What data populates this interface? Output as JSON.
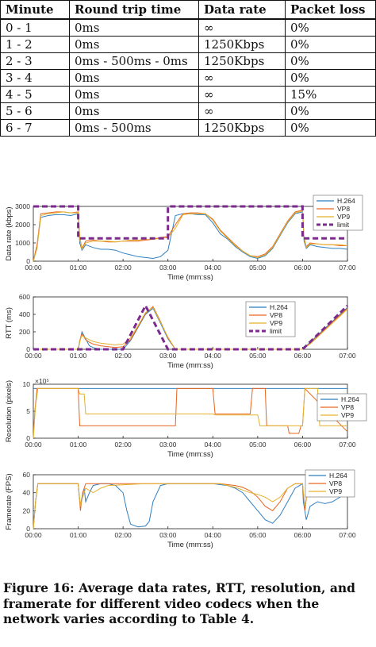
{
  "table": {
    "headers": [
      "Minute",
      "Round trip time",
      "Data rate",
      "Packet loss"
    ],
    "rows": [
      [
        "0 - 1",
        "0ms",
        "∞",
        "0%"
      ],
      [
        "1 - 2",
        "0ms",
        "1250Kbps",
        "0%"
      ],
      [
        "2 - 3",
        "0ms - 500ms - 0ms",
        "1250Kbps",
        "0%"
      ],
      [
        "3 - 4",
        "0ms",
        "∞",
        "0%"
      ],
      [
        "4 - 5",
        "0ms",
        "∞",
        "15%"
      ],
      [
        "5 - 6",
        "0ms",
        "∞",
        "0%"
      ],
      [
        "6 - 7",
        "0ms - 500ms",
        "1250Kbps",
        "0%"
      ]
    ]
  },
  "colors": {
    "h264": "#2f7fc1",
    "vp8": "#e8641f",
    "vp9": "#e3b12b",
    "limit": "#7a2b8c"
  },
  "chart_data": [
    {
      "type": "line",
      "xlabel": "Time (mm:ss)",
      "ylabel": "Data rate (kbps)",
      "xticks": [
        "00:00",
        "01:00",
        "02:00",
        "03:00",
        "04:00",
        "05:00",
        "06:00",
        "07:00"
      ],
      "yticks": [
        "0",
        "1000",
        "2000",
        "3000"
      ],
      "xlim": [
        0,
        420
      ],
      "ylim": [
        0,
        3000
      ],
      "legend": "top-right",
      "series": [
        {
          "name": "H.264",
          "x": [
            0,
            5,
            10,
            20,
            30,
            40,
            50,
            60,
            62,
            65,
            70,
            80,
            90,
            100,
            110,
            120,
            130,
            140,
            150,
            160,
            170,
            180,
            190,
            200,
            210,
            220,
            230,
            240,
            250,
            260,
            270,
            280,
            290,
            300,
            310,
            320,
            330,
            340,
            350,
            360,
            362,
            365,
            370,
            380,
            390,
            400,
            410,
            420
          ],
          "y": [
            0,
            800,
            2400,
            2500,
            2550,
            2550,
            2500,
            2600,
            1000,
            600,
            900,
            750,
            650,
            650,
            600,
            450,
            350,
            250,
            200,
            150,
            250,
            600,
            2500,
            2600,
            2600,
            2550,
            2550,
            2100,
            1500,
            1200,
            800,
            500,
            250,
            150,
            300,
            700,
            1400,
            2100,
            2600,
            2700,
            1100,
            700,
            900,
            800,
            750,
            700,
            700,
            650
          ]
        },
        {
          "name": "VP8",
          "x": [
            0,
            5,
            10,
            20,
            30,
            40,
            50,
            60,
            62,
            65,
            70,
            80,
            90,
            100,
            110,
            120,
            130,
            140,
            150,
            160,
            170,
            180,
            190,
            200,
            210,
            220,
            230,
            240,
            250,
            260,
            270,
            280,
            290,
            300,
            310,
            320,
            330,
            340,
            350,
            360,
            362,
            365,
            370,
            380,
            390,
            400,
            410,
            420
          ],
          "y": [
            0,
            900,
            2600,
            2650,
            2700,
            2700,
            2650,
            2700,
            1300,
            700,
            1100,
            1150,
            1100,
            1050,
            1050,
            1100,
            1100,
            1100,
            1150,
            1200,
            1300,
            1350,
            2000,
            2600,
            2650,
            2650,
            2600,
            2300,
            1700,
            1300,
            900,
            550,
            300,
            250,
            400,
            800,
            1500,
            2200,
            2700,
            2800,
            1300,
            800,
            1000,
            950,
            900,
            900,
            850,
            850
          ]
        },
        {
          "name": "VP9",
          "x": [
            0,
            5,
            10,
            20,
            30,
            40,
            50,
            60,
            62,
            65,
            70,
            80,
            90,
            100,
            110,
            120,
            130,
            140,
            150,
            160,
            170,
            180,
            190,
            200,
            210,
            220,
            230,
            240,
            250,
            260,
            270,
            280,
            290,
            300,
            310,
            320,
            330,
            340,
            350,
            360,
            362,
            365,
            370,
            380,
            390,
            400,
            410,
            420
          ],
          "y": [
            0,
            700,
            2500,
            2600,
            2650,
            2700,
            2650,
            2650,
            1200,
            650,
            1000,
            1100,
            1100,
            1100,
            1050,
            1100,
            1150,
            1150,
            1200,
            1200,
            1250,
            1300,
            1800,
            2550,
            2600,
            2600,
            2600,
            2250,
            1650,
            1250,
            850,
            550,
            300,
            200,
            350,
            750,
            1450,
            2150,
            2650,
            2750,
            1250,
            750,
            950,
            950,
            900,
            900,
            900,
            850
          ]
        },
        {
          "name": "limit",
          "x": [
            0,
            60,
            60,
            180,
            180,
            360,
            360,
            420
          ],
          "y": [
            3000,
            3000,
            1250,
            1250,
            3000,
            3000,
            1250,
            1250
          ]
        }
      ]
    },
    {
      "type": "line",
      "xlabel": "Time (mm:ss)",
      "ylabel": "RTT (ms)",
      "xticks": [
        "00:00",
        "01:00",
        "02:00",
        "03:00",
        "04:00",
        "05:00",
        "06:00",
        "07:00"
      ],
      "yticks": [
        "0",
        "200",
        "400",
        "600"
      ],
      "xlim": [
        0,
        420
      ],
      "ylim": [
        0,
        600
      ],
      "legend": "right",
      "series": [
        {
          "name": "H.264",
          "x": [
            0,
            60,
            62,
            65,
            70,
            75,
            80,
            90,
            100,
            110,
            120,
            130,
            140,
            150,
            160,
            170,
            180,
            190,
            200,
            360,
            370,
            380,
            390,
            400,
            410,
            420
          ],
          "y": [
            0,
            0,
            80,
            200,
            120,
            40,
            20,
            0,
            0,
            0,
            0,
            100,
            250,
            400,
            470,
            300,
            120,
            0,
            0,
            0,
            80,
            160,
            240,
            320,
            400,
            480
          ]
        },
        {
          "name": "VP8",
          "x": [
            0,
            60,
            62,
            65,
            70,
            75,
            80,
            90,
            100,
            110,
            120,
            130,
            140,
            150,
            160,
            170,
            180,
            190,
            200,
            360,
            370,
            380,
            390,
            400,
            410,
            420
          ],
          "y": [
            0,
            0,
            100,
            180,
            110,
            80,
            60,
            40,
            30,
            20,
            30,
            110,
            260,
            410,
            490,
            320,
            130,
            0,
            0,
            0,
            70,
            150,
            230,
            310,
            390,
            470
          ]
        },
        {
          "name": "VP9",
          "x": [
            0,
            60,
            62,
            65,
            70,
            75,
            80,
            90,
            100,
            110,
            120,
            130,
            140,
            150,
            160,
            170,
            180,
            190,
            200,
            360,
            370,
            380,
            390,
            400,
            410,
            420
          ],
          "y": [
            0,
            0,
            90,
            160,
            130,
            110,
            90,
            70,
            60,
            50,
            60,
            130,
            270,
            420,
            480,
            310,
            140,
            0,
            0,
            0,
            60,
            140,
            220,
            300,
            380,
            460
          ]
        },
        {
          "name": "limit",
          "x": [
            0,
            120,
            150,
            180,
            360,
            420
          ],
          "y": [
            0,
            0,
            500,
            0,
            0,
            500
          ]
        }
      ]
    },
    {
      "type": "line",
      "xlabel": "Time (mm:ss)",
      "ylabel": "Resolution (pixels)",
      "y_multiplier": "×10⁵",
      "xticks": [
        "00:00",
        "01:00",
        "02:00",
        "03:00",
        "04:00",
        "05:00",
        "06:00",
        "07:00"
      ],
      "yticks": [
        "0",
        "5",
        "10"
      ],
      "xlim": [
        0,
        420
      ],
      "ylim": [
        0,
        10
      ],
      "legend": "right",
      "series": [
        {
          "name": "H.264",
          "x": [
            0,
            420
          ],
          "y": [
            9.2,
            9.2
          ]
        },
        {
          "name": "VP8",
          "x": [
            0,
            2,
            5,
            60,
            62,
            190,
            192,
            240,
            243,
            290,
            293,
            310,
            312,
            340,
            342,
            355,
            358,
            360,
            363,
            420
          ],
          "y": [
            0,
            5,
            9.2,
            9.2,
            2.3,
            2.3,
            9.2,
            9.2,
            4.5,
            4.5,
            9.2,
            9.2,
            2.3,
            2.3,
            0.9,
            0.9,
            2.3,
            2.3,
            9.2,
            1.2
          ]
        },
        {
          "name": "VP9",
          "x": [
            0,
            3,
            6,
            60,
            62,
            68,
            70,
            240,
            243,
            300,
            303,
            320,
            323,
            360,
            363,
            380,
            383,
            420
          ],
          "y": [
            0,
            6,
            9.2,
            9.2,
            8.2,
            8.2,
            4.5,
            4.5,
            4.3,
            4.3,
            2.3,
            2.3,
            2.3,
            2.3,
            9.2,
            9.2,
            2.3,
            2.3
          ]
        }
      ]
    },
    {
      "type": "line",
      "xlabel": "Time (mm:ss)",
      "ylabel": "Framerate (FPS)",
      "xticks": [
        "00:00",
        "01:00",
        "02:00",
        "03:00",
        "04:00",
        "05:00",
        "06:00",
        "07:00"
      ],
      "yticks": [
        "0",
        "20",
        "40",
        "60"
      ],
      "xlim": [
        0,
        420
      ],
      "ylim": [
        0,
        60
      ],
      "legend": "top-right",
      "series": [
        {
          "name": "H.264",
          "x": [
            0,
            3,
            6,
            60,
            61,
            63,
            65,
            68,
            70,
            75,
            80,
            90,
            100,
            110,
            120,
            125,
            130,
            140,
            150,
            155,
            160,
            170,
            180,
            190,
            200,
            240,
            250,
            260,
            270,
            280,
            290,
            300,
            310,
            320,
            330,
            340,
            350,
            360,
            361,
            363,
            365,
            370,
            380,
            390,
            400,
            410,
            420
          ],
          "y": [
            0,
            30,
            50,
            50,
            40,
            25,
            35,
            45,
            30,
            40,
            48,
            50,
            50,
            48,
            40,
            20,
            5,
            2,
            3,
            8,
            30,
            48,
            50,
            50,
            50,
            50,
            49,
            48,
            45,
            40,
            30,
            20,
            10,
            6,
            15,
            30,
            45,
            50,
            30,
            20,
            10,
            25,
            30,
            28,
            30,
            35,
            45
          ]
        },
        {
          "name": "VP8",
          "x": [
            0,
            3,
            6,
            60,
            63,
            66,
            70,
            80,
            90,
            100,
            150,
            180,
            240,
            250,
            260,
            270,
            280,
            290,
            300,
            310,
            320,
            330,
            340,
            350,
            360,
            363,
            366,
            370,
            380,
            390,
            400,
            410,
            420
          ],
          "y": [
            0,
            30,
            50,
            50,
            20,
            40,
            50,
            50,
            50,
            50,
            50,
            50,
            50,
            50,
            49,
            48,
            46,
            42,
            35,
            25,
            20,
            30,
            45,
            50,
            50,
            20,
            40,
            48,
            50,
            50,
            50,
            50,
            50
          ]
        },
        {
          "name": "VP9",
          "x": [
            0,
            3,
            6,
            60,
            63,
            66,
            70,
            80,
            90,
            100,
            150,
            180,
            240,
            250,
            260,
            270,
            280,
            290,
            300,
            310,
            320,
            330,
            340,
            350,
            360,
            363,
            366,
            370,
            380,
            390,
            400,
            410,
            420
          ],
          "y": [
            0,
            30,
            50,
            50,
            25,
            35,
            45,
            40,
            45,
            48,
            50,
            50,
            50,
            50,
            48,
            46,
            43,
            40,
            38,
            35,
            30,
            35,
            45,
            50,
            50,
            25,
            40,
            48,
            50,
            50,
            50,
            50,
            50
          ]
        }
      ]
    }
  ],
  "caption": "Figure 16: Average data rates, RTT, resolution, and framerate for different video codecs when the network varies according to Table 4."
}
